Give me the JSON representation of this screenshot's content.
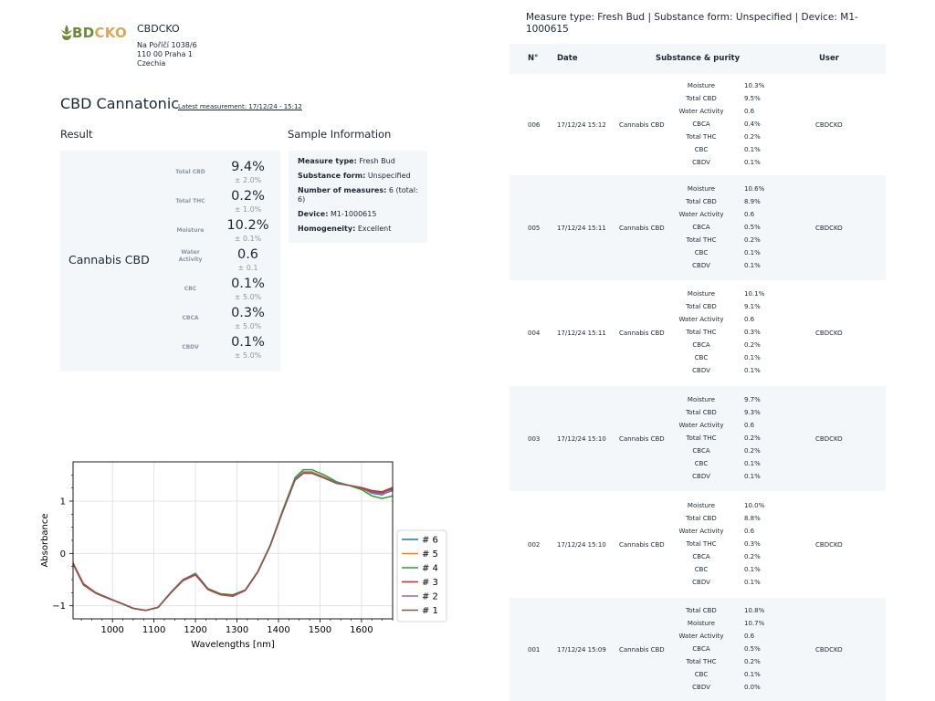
{
  "company": {
    "logo_text_part1": "BD",
    "logo_text_part2": "CKO",
    "name": "CBDCKO",
    "address_line1": "Na Poříčí 1038/6",
    "address_line2": "110 00 Praha 1",
    "address_line3": "Czechia"
  },
  "page": {
    "title": "CBD Cannatonic",
    "latest_measurement": "Latest measurement: 17/12/24 - 15:12"
  },
  "result": {
    "heading": "Result",
    "substance": "Cannabis CBD",
    "rows": [
      {
        "label": "Total CBD",
        "value": "9.4%",
        "error": "± 2.0%"
      },
      {
        "label": "Total THC",
        "value": "0.2%",
        "error": "± 1.0%"
      },
      {
        "label": "Moisture",
        "value": "10.2%",
        "error": "± 0.1%"
      },
      {
        "label": "Water\nActivity",
        "value": "0.6",
        "error": "± 0.1"
      },
      {
        "label": "CBC",
        "value": "0.1%",
        "error": "± 5.0%"
      },
      {
        "label": "CBCA",
        "value": "0.3%",
        "error": "± 5.0%"
      },
      {
        "label": "CBDV",
        "value": "0.1%",
        "error": "± 5.0%"
      }
    ]
  },
  "sample": {
    "heading": "Sample Information",
    "measure_type_label": "Measure type:",
    "measure_type": "Fresh Bud",
    "substance_form_label": "Substance form:",
    "substance_form": "Unspecified",
    "num_measures_label": "Number of measures:",
    "num_measures": "6 (total: 6)",
    "device_label": "Device:",
    "device": "M1-1000615",
    "homogeneity_label": "Homogeneity:",
    "homogeneity": "Excellent"
  },
  "measurements": {
    "header": "Measure type: Fresh Bud | Substance form: Unspecified | Device: M1-1000615",
    "columns": [
      "N°",
      "Date",
      "Substance & purity",
      "User"
    ],
    "rows": [
      {
        "n": "006",
        "date": "17/12/24 15:12",
        "substance": "Cannabis CBD",
        "user": "CBDCKO",
        "purity": [
          [
            "Moisture",
            "10.3%"
          ],
          [
            "Total CBD",
            "9.5%"
          ],
          [
            "Water Activity",
            "0.6"
          ],
          [
            "CBCA",
            "0.4%"
          ],
          [
            "Total THC",
            "0.2%"
          ],
          [
            "CBC",
            "0.1%"
          ],
          [
            "CBDV",
            "0.1%"
          ]
        ]
      },
      {
        "n": "005",
        "date": "17/12/24 15:11",
        "substance": "Cannabis CBD",
        "user": "CBDCKO",
        "purity": [
          [
            "Moisture",
            "10.6%"
          ],
          [
            "Total CBD",
            "8.9%"
          ],
          [
            "Water Activity",
            "0.6"
          ],
          [
            "CBCA",
            "0.5%"
          ],
          [
            "Total THC",
            "0.2%"
          ],
          [
            "CBC",
            "0.1%"
          ],
          [
            "CBDV",
            "0.1%"
          ]
        ]
      },
      {
        "n": "004",
        "date": "17/12/24 15:11",
        "substance": "Cannabis CBD",
        "user": "CBDCKO",
        "purity": [
          [
            "Moisture",
            "10.1%"
          ],
          [
            "Total CBD",
            "9.1%"
          ],
          [
            "Water Activity",
            "0.6"
          ],
          [
            "Total THC",
            "0.3%"
          ],
          [
            "CBCA",
            "0.2%"
          ],
          [
            "CBC",
            "0.1%"
          ],
          [
            "CBDV",
            "0.1%"
          ]
        ]
      },
      {
        "n": "003",
        "date": "17/12/24 15:10",
        "substance": "Cannabis CBD",
        "user": "CBDCKO",
        "purity": [
          [
            "Moisture",
            "9.7%"
          ],
          [
            "Total CBD",
            "9.3%"
          ],
          [
            "Water Activity",
            "0.6"
          ],
          [
            "Total THC",
            "0.2%"
          ],
          [
            "CBCA",
            "0.2%"
          ],
          [
            "CBC",
            "0.1%"
          ],
          [
            "CBDV",
            "0.1%"
          ]
        ]
      },
      {
        "n": "002",
        "date": "17/12/24 15:10",
        "substance": "Cannabis CBD",
        "user": "CBDCKO",
        "purity": [
          [
            "Moisture",
            "10.0%"
          ],
          [
            "Total CBD",
            "8.8%"
          ],
          [
            "Water Activity",
            "0.6"
          ],
          [
            "Total THC",
            "0.3%"
          ],
          [
            "CBCA",
            "0.2%"
          ],
          [
            "CBC",
            "0.1%"
          ],
          [
            "CBDV",
            "0.1%"
          ]
        ]
      },
      {
        "n": "001",
        "date": "17/12/24 15:09",
        "substance": "Cannabis CBD",
        "user": "CBDCKO",
        "purity": [
          [
            "Total CBD",
            "10.8%"
          ],
          [
            "Moisture",
            "10.7%"
          ],
          [
            "Water Activity",
            "0.6"
          ],
          [
            "CBCA",
            "0.5%"
          ],
          [
            "Total THC",
            "0.2%"
          ],
          [
            "CBC",
            "0.1%"
          ],
          [
            "CBDV",
            "0.0%"
          ]
        ]
      }
    ]
  },
  "chart_data": {
    "type": "line",
    "xlabel": "Wavelengths [nm]",
    "ylabel": "Absorbance",
    "xlim": [
      905,
      1675
    ],
    "ylim": [
      -1.25,
      1.75
    ],
    "xticks": [
      1000,
      1100,
      1200,
      1300,
      1400,
      1500,
      1600
    ],
    "yticks": [
      -1,
      0,
      1
    ],
    "grid": true,
    "legend_position": "right",
    "x": [
      905,
      930,
      960,
      990,
      1020,
      1050,
      1080,
      1110,
      1140,
      1170,
      1200,
      1230,
      1260,
      1290,
      1320,
      1350,
      1380,
      1410,
      1440,
      1460,
      1480,
      1510,
      1540,
      1570,
      1600,
      1625,
      1650,
      1675
    ],
    "series": [
      {
        "name": "# 6",
        "color": "#1f77b4",
        "values": [
          -0.2,
          -0.6,
          -0.76,
          -0.86,
          -0.95,
          -1.05,
          -1.09,
          -1.03,
          -0.75,
          -0.5,
          -0.4,
          -0.68,
          -0.78,
          -0.8,
          -0.7,
          -0.35,
          0.15,
          0.8,
          1.42,
          1.55,
          1.55,
          1.45,
          1.35,
          1.3,
          1.25,
          1.15,
          1.12,
          1.22
        ]
      },
      {
        "name": "# 5",
        "color": "#ff7f0e",
        "values": [
          -0.2,
          -0.6,
          -0.76,
          -0.86,
          -0.95,
          -1.05,
          -1.09,
          -1.03,
          -0.75,
          -0.5,
          -0.4,
          -0.68,
          -0.78,
          -0.8,
          -0.7,
          -0.35,
          0.15,
          0.8,
          1.42,
          1.56,
          1.56,
          1.46,
          1.35,
          1.3,
          1.24,
          1.16,
          1.14,
          1.2
        ]
      },
      {
        "name": "# 4",
        "color": "#2ca02c",
        "values": [
          -0.2,
          -0.6,
          -0.76,
          -0.86,
          -0.95,
          -1.05,
          -1.09,
          -1.03,
          -0.75,
          -0.5,
          -0.38,
          -0.67,
          -0.77,
          -0.79,
          -0.7,
          -0.35,
          0.16,
          0.82,
          1.45,
          1.6,
          1.6,
          1.5,
          1.37,
          1.3,
          1.22,
          1.1,
          1.05,
          1.1
        ]
      },
      {
        "name": "# 3",
        "color": "#d62728",
        "values": [
          -0.18,
          -0.58,
          -0.75,
          -0.85,
          -0.95,
          -1.05,
          -1.09,
          -1.03,
          -0.76,
          -0.52,
          -0.41,
          -0.69,
          -0.79,
          -0.82,
          -0.71,
          -0.36,
          0.15,
          0.8,
          1.41,
          1.54,
          1.54,
          1.45,
          1.34,
          1.3,
          1.26,
          1.2,
          1.18,
          1.26
        ]
      },
      {
        "name": "# 2",
        "color": "#9467bd",
        "values": [
          -0.2,
          -0.6,
          -0.76,
          -0.86,
          -0.95,
          -1.05,
          -1.09,
          -1.03,
          -0.75,
          -0.5,
          -0.39,
          -0.68,
          -0.78,
          -0.81,
          -0.7,
          -0.35,
          0.15,
          0.8,
          1.42,
          1.55,
          1.55,
          1.45,
          1.35,
          1.3,
          1.25,
          1.16,
          1.13,
          1.2
        ]
      },
      {
        "name": "# 1",
        "color": "#8c564b",
        "values": [
          -0.2,
          -0.6,
          -0.76,
          -0.86,
          -0.95,
          -1.05,
          -1.09,
          -1.03,
          -0.76,
          -0.51,
          -0.4,
          -0.68,
          -0.78,
          -0.8,
          -0.7,
          -0.35,
          0.14,
          0.79,
          1.4,
          1.53,
          1.53,
          1.44,
          1.34,
          1.3,
          1.25,
          1.18,
          1.16,
          1.24
        ]
      }
    ]
  }
}
